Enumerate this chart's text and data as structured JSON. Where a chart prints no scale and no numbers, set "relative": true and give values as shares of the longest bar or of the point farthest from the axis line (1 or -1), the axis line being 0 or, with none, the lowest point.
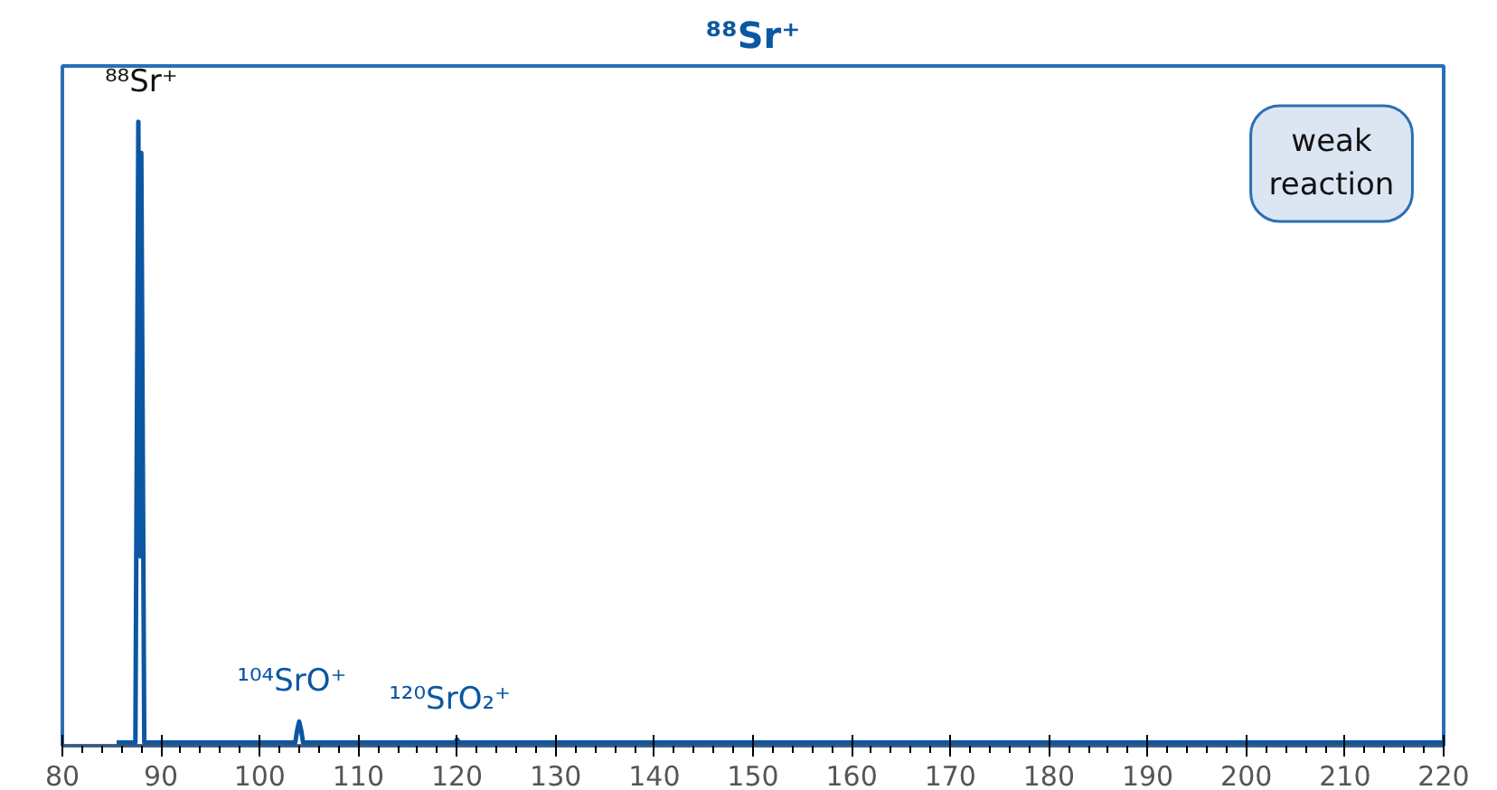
{
  "chart_data": {
    "type": "line",
    "title": "⁸⁸Sr⁺",
    "relative": true,
    "x": [
      85.5,
      87.4,
      87.7,
      87.9,
      88.0,
      88.3,
      103.6,
      103.8,
      104.0,
      104.2,
      104.4,
      119.8,
      120.0,
      120.2,
      220
    ],
    "series": [
      {
        "color": "#0b57a4",
        "values": [
          0,
          0,
          1,
          0.3,
          0.95,
          0,
          0,
          0.02,
          0.034,
          0.02,
          0,
          0,
          0.005,
          0,
          0
        ]
      }
    ],
    "xlim": [
      80,
      220
    ],
    "xticks": [
      80,
      90,
      100,
      110,
      120,
      130,
      140,
      150,
      160,
      170,
      180,
      190,
      200,
      210,
      220
    ],
    "annotations": [
      {
        "text": "⁸⁸Sr⁺",
        "x": 88,
        "y": 1
      },
      {
        "text": "¹⁰⁴SrO⁺",
        "x": 104,
        "y": 0.034
      },
      {
        "text": "¹²⁰SrO₂⁺",
        "x": 120,
        "y": 0.005
      },
      "weak reaction"
    ],
    "marker": "none",
    "line_style": "solid"
  }
}
